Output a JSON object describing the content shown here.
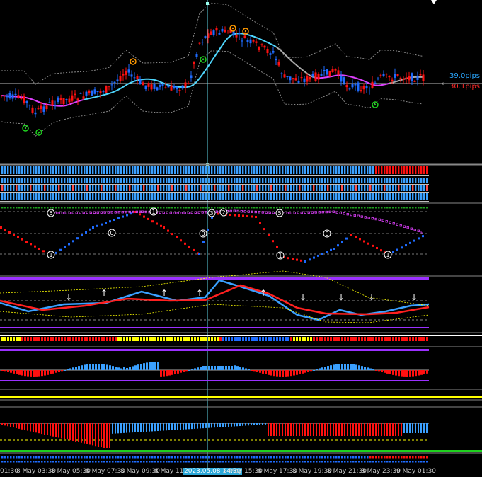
{
  "price_labels": {
    "upper": "39.0pips",
    "lower": "30.1pips",
    "upper_color": "#2aa7ff",
    "lower_color": "#ff2a2a"
  },
  "time_axis": {
    "labels": [
      "01:30",
      "8 May 03:30",
      "8 May 05:30",
      "8 May 07:30",
      "8 May 09:30",
      "8 May 11:30",
      "2023.05.08 14:30",
      "8 May 15:30",
      "8 May 17:30",
      "8 May 19:30",
      "8 May 21:30",
      "8 May 23:30",
      "9 May 01:30"
    ],
    "highlighted": "2023.05.08 14:30"
  },
  "colors": {
    "bull": "#1e6bff",
    "bear": "#ff1010",
    "band": "#888888",
    "ma_fast": "#4fd8ff",
    "ma_slow": "#e040ff",
    "ma_flat": "#aaaaaa",
    "signal_green": "#1fd01f",
    "signal_orange": "#ff9900",
    "osc_blue": "#3aa0ff",
    "osc_red": "#ff2020",
    "yellow": "#ffff00",
    "purple": "#9b30ff",
    "crosshair": "#5fd3e3"
  },
  "chart_data": {
    "type": "candlestick",
    "panes": [
      "price",
      "trend-bars",
      "dot-signals",
      "oscillator",
      "color-strip",
      "histogram-1",
      "histogram-2",
      "color-strip-2"
    ],
    "signal_numbers": {
      "top": [
        "5",
        "1",
        "3",
        "2",
        "5"
      ],
      "bottom": [
        "1",
        "1",
        "1"
      ],
      "mid": [
        "0",
        "0",
        "0"
      ]
    }
  }
}
